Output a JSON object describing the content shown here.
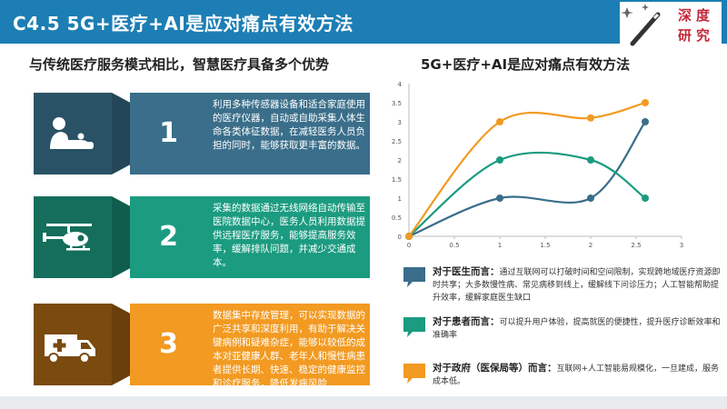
{
  "header": {
    "title": "C4.5   5G+医疗+AI是应对痛点有效方法",
    "logo_chars": [
      "深",
      "度",
      "研",
      "究"
    ],
    "accent": "#1c7eb4"
  },
  "left": {
    "title": "与传统医疗服务模式相比，智慧医疗具备多个优势",
    "items": [
      {
        "number": "1",
        "icon": "patient-care-icon",
        "text": "利用多种传感器设备和适合家庭使用的医疗仪器，自动或自助采集人体生命各类体征数据，在减轻医务人员负担的同时，能够获取更丰富的数据。",
        "color": "#3a6e8a"
      },
      {
        "number": "2",
        "icon": "helicopter-icon",
        "text": "采集的数据通过无线网络自动传输至医院数据中心，医务人员利用数据提供远程医疗服务，能够提高服务效率，缓解排队问题，并减少交通成本。",
        "color": "#1b9b80"
      },
      {
        "number": "3",
        "icon": "ambulance-icon",
        "text": "数据集中存放管理，可以实现数据的广泛共享和深度利用，有助于解决关键病例和疑难杂症，能够以较低的成本对亚健康人群、老年人和慢性病患者提供长期、快速、稳定的健康监控和诊疗服务，降低发病风险",
        "color": "#f29a21"
      }
    ]
  },
  "right": {
    "title": "5G+医疗+AI是应对痛点有效方法",
    "legend": [
      {
        "head": "对于医生而言：",
        "text": "通过互联网可以打破时间和空间限制，实现跨地域医疗资源即时共享；大多数慢性病、常见病移到线上，缓解线下问诊压力；人工智能帮助提升效率，缓解家庭医生缺口",
        "color": "#3a6e8a"
      },
      {
        "head": "对于患者而言：",
        "text": "可以提升用户体验，提高就医的便捷性，提升医疗诊断效率和准确率",
        "color": "#1b9b80"
      },
      {
        "head": "对于政府（医保局等）而言：",
        "text": "互联网+人工智能易规模化，一旦建成，服务成本低。",
        "color": "#f29a21"
      }
    ]
  },
  "chart_data": {
    "type": "line",
    "title": "",
    "xlim": [
      0,
      3
    ],
    "ylim": [
      0,
      4
    ],
    "x_ticks": [
      "0",
      "0.5",
      "1",
      "1.5",
      "2",
      "2.5",
      "3"
    ],
    "y_ticks": [
      "0",
      "0.5",
      "1",
      "1.5",
      "2",
      "2.5",
      "3",
      "3.5",
      "4"
    ],
    "grid": false,
    "series": [
      {
        "color": "#3a6e8a",
        "points": [
          [
            0,
            0
          ],
          [
            1,
            1
          ],
          [
            2,
            1
          ],
          [
            2.6,
            3
          ]
        ]
      },
      {
        "color": "#1b9b80",
        "points": [
          [
            0,
            0
          ],
          [
            1,
            2
          ],
          [
            2,
            2
          ],
          [
            2.6,
            1
          ]
        ]
      },
      {
        "color": "#f29a21",
        "points": [
          [
            0,
            0
          ],
          [
            1,
            3
          ],
          [
            2,
            3.1
          ],
          [
            2.6,
            3.5
          ]
        ]
      }
    ]
  }
}
